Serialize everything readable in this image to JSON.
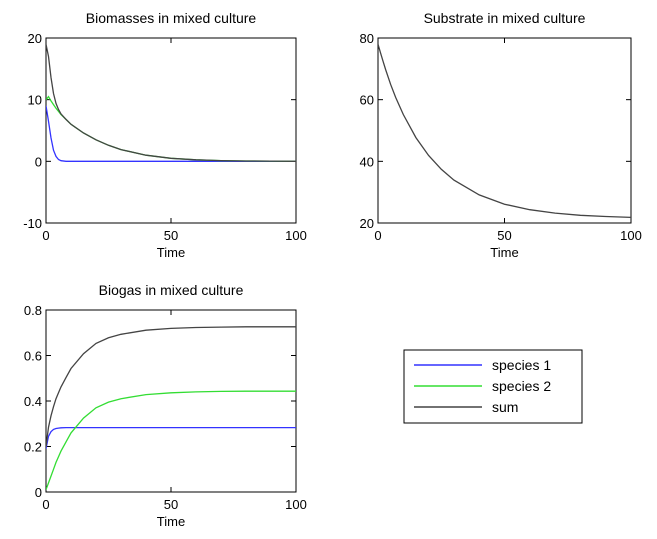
{
  "chart_data": [
    {
      "type": "line",
      "title": "Biomasses in mixed culture",
      "xlabel": "Time",
      "ylabel": "",
      "xlim": [
        0,
        100
      ],
      "ylim": [
        -10,
        20
      ],
      "xticks": [
        0,
        50,
        100
      ],
      "yticks": [
        -10,
        0,
        10,
        20
      ],
      "grid": false,
      "x": [
        0,
        1,
        2,
        3,
        4,
        5,
        6,
        8,
        10,
        15,
        20,
        25,
        30,
        40,
        50,
        60,
        70,
        80,
        90,
        100
      ],
      "series": [
        {
          "name": "species 1",
          "color": "#3333ff",
          "values": [
            9,
            6.5,
            3.8,
            1.8,
            0.8,
            0.3,
            0.1,
            0,
            0,
            0,
            0,
            0,
            0,
            0,
            0,
            0,
            0,
            0,
            0,
            0
          ]
        },
        {
          "name": "species 2",
          "color": "#33dd33",
          "values": [
            10,
            10.5,
            9.8,
            9.2,
            8.6,
            8.1,
            7.6,
            6.8,
            6.0,
            4.6,
            3.5,
            2.6,
            1.9,
            1.0,
            0.5,
            0.25,
            0.12,
            0.06,
            0.03,
            0
          ]
        },
        {
          "name": "sum",
          "color": "#444444",
          "values": [
            19,
            17,
            13.6,
            11,
            9.4,
            8.4,
            7.7,
            6.8,
            6.0,
            4.6,
            3.5,
            2.6,
            1.9,
            1.0,
            0.5,
            0.25,
            0.12,
            0.06,
            0.03,
            0
          ]
        }
      ]
    },
    {
      "type": "line",
      "title": "Substrate in mixed culture",
      "xlabel": "Time",
      "ylabel": "",
      "xlim": [
        0,
        100
      ],
      "ylim": [
        20,
        80
      ],
      "xticks": [
        0,
        50,
        100
      ],
      "yticks": [
        20,
        40,
        60,
        80
      ],
      "grid": false,
      "x": [
        0,
        1,
        2,
        3,
        5,
        7,
        10,
        15,
        20,
        25,
        30,
        40,
        50,
        60,
        70,
        80,
        90,
        100
      ],
      "series": [
        {
          "name": "",
          "color": "#444444",
          "values": [
            78,
            75.2,
            72.4,
            69.8,
            65,
            60.7,
            55.2,
            47.7,
            41.9,
            37.4,
            33.9,
            29.1,
            26.1,
            24.3,
            23.2,
            22.5,
            22.1,
            21.8
          ]
        }
      ]
    },
    {
      "type": "line",
      "title": "Biogas in mixed culture",
      "xlabel": "Time",
      "ylabel": "",
      "xlim": [
        0,
        100
      ],
      "ylim": [
        0,
        0.8
      ],
      "xticks": [
        0,
        50,
        100
      ],
      "yticks": [
        0,
        0.2,
        0.4,
        0.6,
        0.8
      ],
      "grid": false,
      "legend": "outside-right",
      "x": [
        0,
        1,
        2,
        3,
        4,
        5,
        6,
        8,
        10,
        15,
        20,
        25,
        30,
        40,
        50,
        60,
        70,
        80,
        90,
        100
      ],
      "series": [
        {
          "name": "species 1",
          "color": "#3333ff",
          "values": [
            0.19,
            0.245,
            0.265,
            0.275,
            0.279,
            0.281,
            0.282,
            0.283,
            0.283,
            0.283,
            0.283,
            0.283,
            0.283,
            0.283,
            0.283,
            0.283,
            0.283,
            0.283,
            0.283,
            0.283
          ]
        },
        {
          "name": "species 2",
          "color": "#33dd33",
          "values": [
            0.01,
            0.04,
            0.07,
            0.1,
            0.13,
            0.155,
            0.18,
            0.22,
            0.26,
            0.325,
            0.37,
            0.395,
            0.41,
            0.428,
            0.436,
            0.44,
            0.442,
            0.443,
            0.443,
            0.443
          ]
        },
        {
          "name": "sum",
          "color": "#444444",
          "values": [
            0.2,
            0.285,
            0.335,
            0.375,
            0.41,
            0.436,
            0.462,
            0.503,
            0.543,
            0.608,
            0.653,
            0.678,
            0.693,
            0.711,
            0.719,
            0.723,
            0.725,
            0.726,
            0.726,
            0.726
          ]
        }
      ]
    }
  ],
  "legend": {
    "entries": [
      {
        "label": "species 1",
        "color": "#3333ff"
      },
      {
        "label": "species 2",
        "color": "#33dd33"
      },
      {
        "label": "sum",
        "color": "#444444"
      }
    ]
  }
}
